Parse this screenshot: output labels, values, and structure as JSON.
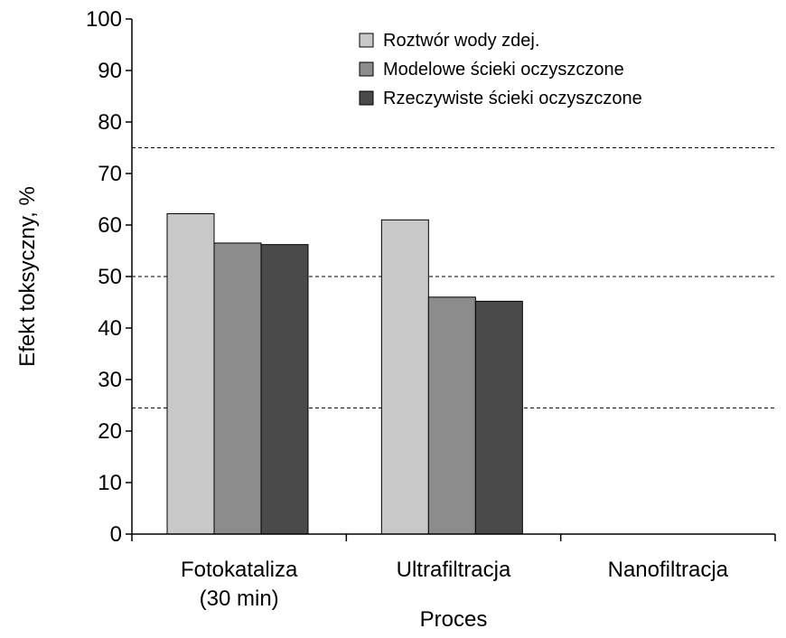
{
  "chart_data": {
    "type": "bar",
    "title": "",
    "xlabel": "Proces",
    "ylabel": "Efekt toksyczny,  %",
    "ylim": [
      0,
      100
    ],
    "yticks": [
      0,
      10,
      20,
      30,
      40,
      50,
      60,
      70,
      80,
      90,
      100
    ],
    "categories": [
      [
        "Fotokataliza",
        "(30 min)"
      ],
      [
        "Ultrafiltracja"
      ],
      [
        "Nanofiltracja"
      ]
    ],
    "series": [
      {
        "name": "Roztwór wody zdej.",
        "color": "#c8c8c8",
        "values": [
          62.2,
          61.0,
          0
        ]
      },
      {
        "name": "Modelowe ścieki oczyszczone",
        "color": "#8c8c8c",
        "values": [
          56.5,
          46.0,
          0
        ]
      },
      {
        "name": "Rzeczywiste ścieki oczyszczone",
        "color": "#4a4a4a",
        "values": [
          56.2,
          45.2,
          0
        ]
      }
    ],
    "reference_lines": [
      24.5,
      50,
      75
    ],
    "grid": false,
    "legend_position": "top-right"
  }
}
